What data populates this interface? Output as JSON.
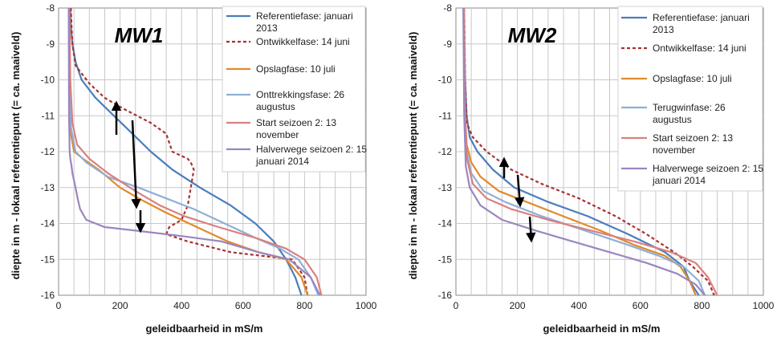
{
  "chart_data": [
    {
      "type": "line",
      "title": "MW1",
      "xlabel": "geleidbaarheid in mS/m",
      "ylabel": "diepte in m - lokaal referentiepunt (= ca. maaiveld)",
      "xlim": [
        0,
        1000
      ],
      "ylim": [
        -16,
        -8
      ],
      "xticks": [
        "0",
        "200",
        "400",
        "600",
        "800",
        "1000"
      ],
      "yticks": [
        "-8",
        "-9",
        "-10",
        "-11",
        "-12",
        "-13",
        "-14",
        "-15",
        "-16"
      ],
      "grid": true,
      "legend": "top-right",
      "series": [
        {
          "name": "Referentiefase: januari 2013",
          "color": "#4a7ebb",
          "dash": "solid",
          "points": [
            [
              38,
              -8
            ],
            [
              40,
              -8.5
            ],
            [
              45,
              -9
            ],
            [
              55,
              -9.5
            ],
            [
              75,
              -10
            ],
            [
              120,
              -10.5
            ],
            [
              180,
              -11
            ],
            [
              240,
              -11.5
            ],
            [
              300,
              -12
            ],
            [
              370,
              -12.5
            ],
            [
              460,
              -13
            ],
            [
              560,
              -13.5
            ],
            [
              640,
              -14
            ],
            [
              700,
              -14.5
            ],
            [
              740,
              -15
            ],
            [
              770,
              -15.5
            ],
            [
              790,
              -16
            ]
          ]
        },
        {
          "name": "Ontwikkelfase: 14 juni",
          "color": "#a83232",
          "dash": "4,3",
          "points": [
            [
              40,
              -8
            ],
            [
              42,
              -8.5
            ],
            [
              45,
              -9
            ],
            [
              55,
              -9.6
            ],
            [
              100,
              -10.1
            ],
            [
              150,
              -10.5
            ],
            [
              210,
              -10.8
            ],
            [
              300,
              -11.2
            ],
            [
              350,
              -11.5
            ],
            [
              370,
              -12
            ],
            [
              420,
              -12.2
            ],
            [
              430,
              -12.3
            ],
            [
              440,
              -12.5
            ],
            [
              430,
              -13
            ],
            [
              420,
              -13.5
            ],
            [
              400,
              -13.9
            ],
            [
              360,
              -14.1
            ],
            [
              350,
              -14.3
            ],
            [
              420,
              -14.5
            ],
            [
              560,
              -14.8
            ],
            [
              760,
              -15
            ],
            [
              800,
              -15.5
            ],
            [
              810,
              -16
            ]
          ]
        },
        {
          "name": "Opslagfase: 10 juli",
          "color": "#e08a2a",
          "dash": "solid",
          "points": [
            [
              35,
              -8
            ],
            [
              36,
              -10
            ],
            [
              40,
              -11.5
            ],
            [
              50,
              -12
            ],
            [
              80,
              -12.2
            ],
            [
              130,
              -12.5
            ],
            [
              200,
              -13
            ],
            [
              260,
              -13.3
            ],
            [
              350,
              -13.7
            ],
            [
              450,
              -14.1
            ],
            [
              550,
              -14.5
            ],
            [
              650,
              -14.8
            ],
            [
              740,
              -15
            ],
            [
              790,
              -15.5
            ],
            [
              810,
              -16
            ]
          ]
        },
        {
          "name": "Onttrekkingsfase: 26 augustus",
          "color": "#8fafd6",
          "dash": "solid",
          "points": [
            [
              35,
              -8
            ],
            [
              36,
              -10
            ],
            [
              40,
              -11.3
            ],
            [
              55,
              -12
            ],
            [
              90,
              -12.3
            ],
            [
              160,
              -12.7
            ],
            [
              260,
              -13
            ],
            [
              350,
              -13.3
            ],
            [
              440,
              -13.6
            ],
            [
              540,
              -14
            ],
            [
              640,
              -14.4
            ],
            [
              720,
              -14.7
            ],
            [
              780,
              -15
            ],
            [
              820,
              -15.5
            ],
            [
              845,
              -16
            ]
          ]
        },
        {
          "name": "Start seizoen 2: 13 november",
          "color": "#d98080",
          "dash": "solid",
          "points": [
            [
              35,
              -8
            ],
            [
              38,
              -10
            ],
            [
              45,
              -11.2
            ],
            [
              60,
              -11.8
            ],
            [
              100,
              -12.2
            ],
            [
              160,
              -12.6
            ],
            [
              250,
              -13.1
            ],
            [
              330,
              -13.5
            ],
            [
              410,
              -13.8
            ],
            [
              520,
              -14.1
            ],
            [
              640,
              -14.4
            ],
            [
              740,
              -14.7
            ],
            [
              800,
              -15
            ],
            [
              840,
              -15.5
            ],
            [
              855,
              -16
            ]
          ]
        },
        {
          "name": "Halverwege seizoen 2: 15 januari 2014",
          "color": "#9a86c0",
          "dash": "solid",
          "points": [
            [
              33,
              -8
            ],
            [
              34,
              -11
            ],
            [
              36,
              -12
            ],
            [
              38,
              -12.2
            ],
            [
              42,
              -12.4
            ],
            [
              45,
              -12.6
            ],
            [
              50,
              -12.8
            ],
            [
              55,
              -13
            ],
            [
              62,
              -13.3
            ],
            [
              70,
              -13.6
            ],
            [
              90,
              -13.9
            ],
            [
              150,
              -14.1
            ],
            [
              250,
              -14.2
            ],
            [
              400,
              -14.35
            ],
            [
              530,
              -14.5
            ],
            [
              650,
              -14.8
            ],
            [
              750,
              -15
            ],
            [
              820,
              -15.5
            ],
            [
              850,
              -16
            ]
          ]
        }
      ]
    },
    {
      "type": "line",
      "title": "MW2",
      "xlabel": "geleidbaarheid in mS/m",
      "ylabel": "diepte in m - lokaal referentiepunt (= ca. maaiveld)",
      "xlim": [
        0,
        1000
      ],
      "ylim": [
        -16,
        -8
      ],
      "xticks": [
        "0",
        "200",
        "400",
        "600",
        "800",
        "1000"
      ],
      "yticks": [
        "-8",
        "-9",
        "-10",
        "-11",
        "-12",
        "-13",
        "-14",
        "-15",
        "-16"
      ],
      "grid": true,
      "legend": "top-right",
      "series": [
        {
          "name": "Referentiefase: januari 2013",
          "color": "#4a7ebb",
          "dash": "solid",
          "points": [
            [
              25,
              -8
            ],
            [
              30,
              -10
            ],
            [
              35,
              -11
            ],
            [
              45,
              -11.6
            ],
            [
              70,
              -12
            ],
            [
              120,
              -12.5
            ],
            [
              190,
              -13
            ],
            [
              300,
              -13.4
            ],
            [
              430,
              -13.8
            ],
            [
              560,
              -14.3
            ],
            [
              680,
              -14.8
            ],
            [
              740,
              -15.2
            ],
            [
              760,
              -15.6
            ],
            [
              790,
              -16
            ]
          ]
        },
        {
          "name": "Ontwikkelfase: 14 juni",
          "color": "#a83232",
          "dash": "4,3",
          "points": [
            [
              27,
              -8
            ],
            [
              30,
              -10
            ],
            [
              35,
              -11.2
            ],
            [
              55,
              -11.6
            ],
            [
              100,
              -12
            ],
            [
              180,
              -12.5
            ],
            [
              280,
              -12.9
            ],
            [
              400,
              -13.3
            ],
            [
              520,
              -13.8
            ],
            [
              620,
              -14.3
            ],
            [
              710,
              -14.8
            ],
            [
              770,
              -15.2
            ],
            [
              820,
              -15.6
            ],
            [
              840,
              -16
            ]
          ]
        },
        {
          "name": "Opslagfase: 10 juli",
          "color": "#e08a2a",
          "dash": "solid",
          "points": [
            [
              27,
              -8
            ],
            [
              30,
              -11
            ],
            [
              35,
              -11.8
            ],
            [
              50,
              -12.3
            ],
            [
              80,
              -12.7
            ],
            [
              140,
              -13.1
            ],
            [
              230,
              -13.4
            ],
            [
              350,
              -13.8
            ],
            [
              470,
              -14.2
            ],
            [
              580,
              -14.6
            ],
            [
              680,
              -14.9
            ],
            [
              730,
              -15.2
            ],
            [
              760,
              -15.6
            ],
            [
              780,
              -16
            ]
          ]
        },
        {
          "name": "Terugwinfase: 26 augustus",
          "color": "#8fafd6",
          "dash": "solid",
          "points": [
            [
              25,
              -8
            ],
            [
              28,
              -11
            ],
            [
              35,
              -12
            ],
            [
              50,
              -12.6
            ],
            [
              90,
              -13.1
            ],
            [
              160,
              -13.4
            ],
            [
              280,
              -13.8
            ],
            [
              420,
              -14.2
            ],
            [
              560,
              -14.6
            ],
            [
              660,
              -14.9
            ],
            [
              740,
              -15.2
            ],
            [
              790,
              -15.6
            ],
            [
              810,
              -16
            ]
          ]
        },
        {
          "name": "Start seizoen 2: 13 november",
          "color": "#d98080",
          "dash": "solid",
          "points": [
            [
              26,
              -8
            ],
            [
              30,
              -11
            ],
            [
              36,
              -12.2
            ],
            [
              55,
              -12.9
            ],
            [
              100,
              -13.3
            ],
            [
              180,
              -13.6
            ],
            [
              300,
              -13.9
            ],
            [
              440,
              -14.2
            ],
            [
              580,
              -14.5
            ],
            [
              700,
              -14.8
            ],
            [
              780,
              -15.1
            ],
            [
              820,
              -15.5
            ],
            [
              850,
              -16
            ]
          ]
        },
        {
          "name": "Halverwege seizoen 2: 15 januari 2014",
          "color": "#9a86c0",
          "dash": "solid",
          "points": [
            [
              24,
              -8
            ],
            [
              27,
              -11
            ],
            [
              32,
              -12.4
            ],
            [
              45,
              -13
            ],
            [
              80,
              -13.5
            ],
            [
              150,
              -13.9
            ],
            [
              260,
              -14.2
            ],
            [
              380,
              -14.5
            ],
            [
              500,
              -14.8
            ],
            [
              620,
              -15.1
            ],
            [
              720,
              -15.4
            ],
            [
              780,
              -15.7
            ],
            [
              810,
              -16
            ]
          ]
        }
      ]
    }
  ]
}
